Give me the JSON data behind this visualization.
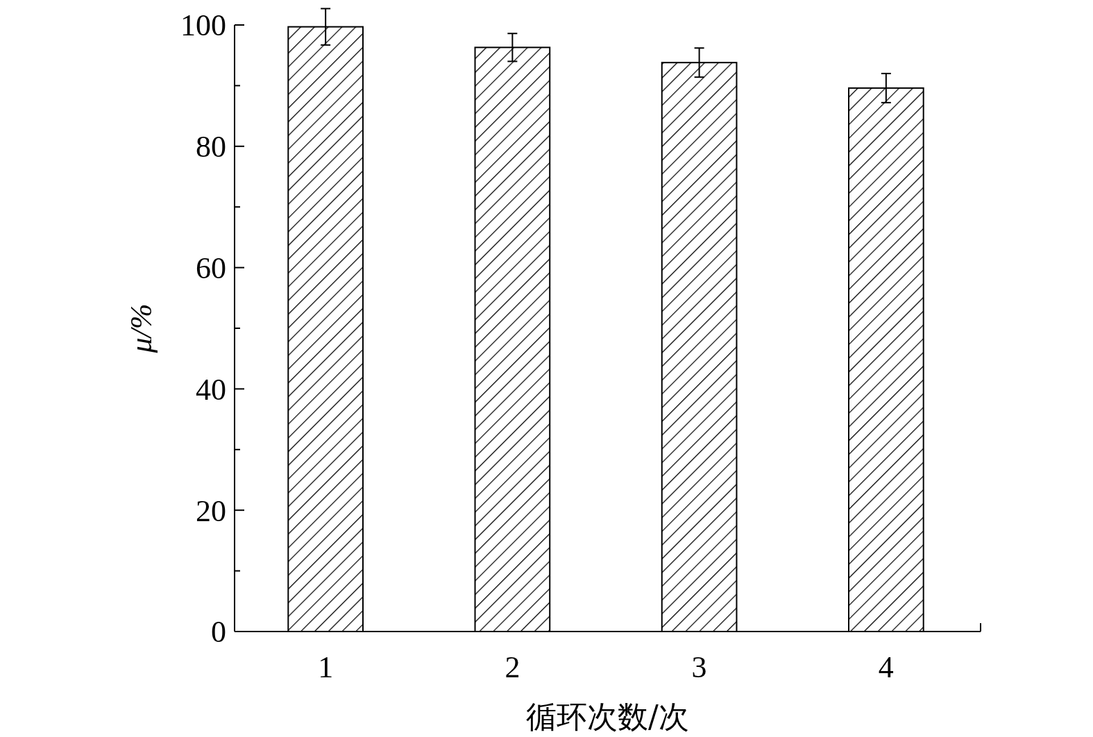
{
  "chart_data": {
    "type": "bar",
    "xlabel": "循环次数/次",
    "ylabel": "μ/%",
    "categories": [
      "1",
      "2",
      "3",
      "4"
    ],
    "values": [
      99.7,
      96.3,
      93.8,
      89.6
    ],
    "errors": [
      3.0,
      2.3,
      2.4,
      2.4
    ],
    "color": "#000000",
    "ylim": [
      0,
      100
    ],
    "yticks": [
      0,
      {
        "value": 10,
        "label": null
      },
      20,
      {
        "value": 30,
        "label": null
      },
      40,
      {
        "value": 50,
        "label": null
      },
      60,
      {
        "value": 70,
        "label": null
      },
      80,
      {
        "value": 90,
        "label": null
      },
      100
    ],
    "grid": false
  }
}
